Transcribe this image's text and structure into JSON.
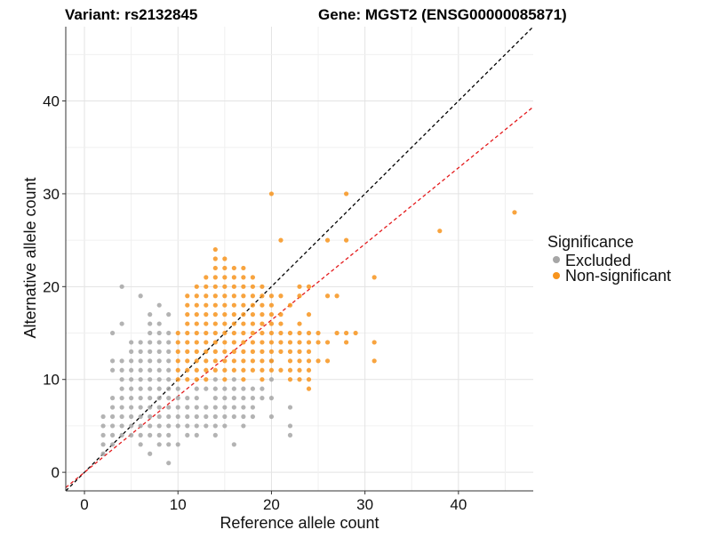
{
  "chart_data": {
    "type": "scatter",
    "title_variant": "Variant: rs2132845",
    "title_gene": "Gene: MGST2 (ENSG00000085871)",
    "xlabel": "Reference allele count",
    "ylabel": "Alternative allele count",
    "xlim": [
      -2,
      48
    ],
    "ylim": [
      -2,
      48
    ],
    "x_ticks": [
      0,
      10,
      20,
      30,
      40
    ],
    "y_ticks": [
      0,
      10,
      20,
      30,
      40
    ],
    "grid": true,
    "legend": {
      "title": "Significance",
      "position": "right",
      "entries": [
        {
          "name": "Excluded",
          "color": "#a6a6a6"
        },
        {
          "name": "Non-significant",
          "color": "#f7941d"
        }
      ]
    },
    "reference_lines": [
      {
        "color": "#000000",
        "dash": true,
        "slope": 1.0,
        "intercept": 0
      },
      {
        "color": "#e41a1c",
        "dash": true,
        "slope": 0.82,
        "intercept": 0
      }
    ],
    "series": [
      {
        "name": "Excluded",
        "color": "#a6a6a6",
        "points": [
          [
            2,
            2
          ],
          [
            2,
            3
          ],
          [
            2,
            4
          ],
          [
            2,
            5
          ],
          [
            2,
            6
          ],
          [
            3,
            3
          ],
          [
            3,
            4
          ],
          [
            3,
            5
          ],
          [
            3,
            6
          ],
          [
            3,
            7
          ],
          [
            3,
            8
          ],
          [
            3,
            11
          ],
          [
            3,
            12
          ],
          [
            3,
            15
          ],
          [
            4,
            4
          ],
          [
            4,
            5
          ],
          [
            4,
            6
          ],
          [
            4,
            7
          ],
          [
            4,
            8
          ],
          [
            4,
            9
          ],
          [
            4,
            10
          ],
          [
            4,
            11
          ],
          [
            4,
            12
          ],
          [
            4,
            16
          ],
          [
            4,
            20
          ],
          [
            5,
            4
          ],
          [
            5,
            5
          ],
          [
            5,
            6
          ],
          [
            5,
            7
          ],
          [
            5,
            8
          ],
          [
            5,
            9
          ],
          [
            5,
            10
          ],
          [
            5,
            11
          ],
          [
            5,
            12
          ],
          [
            5,
            13
          ],
          [
            5,
            14
          ],
          [
            6,
            3
          ],
          [
            6,
            4
          ],
          [
            6,
            5
          ],
          [
            6,
            6
          ],
          [
            6,
            7
          ],
          [
            6,
            8
          ],
          [
            6,
            9
          ],
          [
            6,
            10
          ],
          [
            6,
            11
          ],
          [
            6,
            12
          ],
          [
            6,
            13
          ],
          [
            6,
            14
          ],
          [
            6,
            19
          ],
          [
            7,
            2
          ],
          [
            7,
            4
          ],
          [
            7,
            5
          ],
          [
            7,
            6
          ],
          [
            7,
            7
          ],
          [
            7,
            8
          ],
          [
            7,
            9
          ],
          [
            7,
            10
          ],
          [
            7,
            11
          ],
          [
            7,
            12
          ],
          [
            7,
            13
          ],
          [
            7,
            14
          ],
          [
            7,
            15
          ],
          [
            7,
            16
          ],
          [
            7,
            17
          ],
          [
            8,
            3
          ],
          [
            8,
            4
          ],
          [
            8,
            5
          ],
          [
            8,
            6
          ],
          [
            8,
            7
          ],
          [
            8,
            8
          ],
          [
            8,
            9
          ],
          [
            8,
            10
          ],
          [
            8,
            11
          ],
          [
            8,
            12
          ],
          [
            8,
            13
          ],
          [
            8,
            14
          ],
          [
            8,
            15
          ],
          [
            8,
            16
          ],
          [
            8,
            18
          ],
          [
            9,
            1
          ],
          [
            9,
            3
          ],
          [
            9,
            4
          ],
          [
            9,
            5
          ],
          [
            9,
            6
          ],
          [
            9,
            7
          ],
          [
            9,
            8
          ],
          [
            9,
            9
          ],
          [
            9,
            10
          ],
          [
            9,
            11
          ],
          [
            9,
            12
          ],
          [
            9,
            13
          ],
          [
            9,
            14
          ],
          [
            9,
            15
          ],
          [
            9,
            17
          ],
          [
            10,
            3
          ],
          [
            10,
            5
          ],
          [
            10,
            6
          ],
          [
            10,
            7
          ],
          [
            10,
            8
          ],
          [
            10,
            9
          ],
          [
            11,
            4
          ],
          [
            11,
            5
          ],
          [
            11,
            6
          ],
          [
            11,
            7
          ],
          [
            11,
            8
          ],
          [
            12,
            4
          ],
          [
            12,
            5
          ],
          [
            12,
            6
          ],
          [
            12,
            7
          ],
          [
            12,
            8
          ],
          [
            12,
            9
          ],
          [
            13,
            5
          ],
          [
            13,
            6
          ],
          [
            13,
            7
          ],
          [
            13,
            9
          ],
          [
            14,
            4
          ],
          [
            14,
            5
          ],
          [
            14,
            6
          ],
          [
            14,
            7
          ],
          [
            14,
            8
          ],
          [
            14,
            9
          ],
          [
            14,
            10
          ],
          [
            15,
            5
          ],
          [
            15,
            6
          ],
          [
            15,
            7
          ],
          [
            15,
            8
          ],
          [
            15,
            9
          ],
          [
            16,
            3
          ],
          [
            16,
            6
          ],
          [
            16,
            7
          ],
          [
            16,
            8
          ],
          [
            16,
            9
          ],
          [
            16,
            10
          ],
          [
            17,
            5
          ],
          [
            17,
            6
          ],
          [
            17,
            7
          ],
          [
            17,
            8
          ],
          [
            17,
            9
          ],
          [
            18,
            6
          ],
          [
            18,
            7
          ],
          [
            18,
            8
          ],
          [
            18,
            9
          ],
          [
            19,
            8
          ],
          [
            19,
            9
          ],
          [
            20,
            6
          ],
          [
            20,
            8
          ],
          [
            20,
            10
          ],
          [
            20,
            12
          ],
          [
            22,
            4
          ],
          [
            22,
            5
          ],
          [
            22,
            7
          ]
        ]
      },
      {
        "name": "Non-significant",
        "color": "#f7941d",
        "points": [
          [
            10,
            10
          ],
          [
            10,
            11
          ],
          [
            10,
            12
          ],
          [
            10,
            13
          ],
          [
            10,
            14
          ],
          [
            10,
            15
          ],
          [
            11,
            10
          ],
          [
            11,
            11
          ],
          [
            11,
            12
          ],
          [
            11,
            13
          ],
          [
            11,
            14
          ],
          [
            11,
            15
          ],
          [
            11,
            16
          ],
          [
            11,
            17
          ],
          [
            11,
            18
          ],
          [
            11,
            19
          ],
          [
            12,
            10
          ],
          [
            12,
            11
          ],
          [
            12,
            12
          ],
          [
            12,
            13
          ],
          [
            12,
            14
          ],
          [
            12,
            15
          ],
          [
            12,
            16
          ],
          [
            12,
            17
          ],
          [
            12,
            18
          ],
          [
            12,
            19
          ],
          [
            12,
            20
          ],
          [
            13,
            10
          ],
          [
            13,
            11
          ],
          [
            13,
            12
          ],
          [
            13,
            13
          ],
          [
            13,
            14
          ],
          [
            13,
            15
          ],
          [
            13,
            16
          ],
          [
            13,
            17
          ],
          [
            13,
            18
          ],
          [
            13,
            19
          ],
          [
            13,
            20
          ],
          [
            13,
            21
          ],
          [
            14,
            11
          ],
          [
            14,
            12
          ],
          [
            14,
            13
          ],
          [
            14,
            14
          ],
          [
            14,
            15
          ],
          [
            14,
            16
          ],
          [
            14,
            17
          ],
          [
            14,
            18
          ],
          [
            14,
            19
          ],
          [
            14,
            20
          ],
          [
            14,
            21
          ],
          [
            14,
            22
          ],
          [
            14,
            23
          ],
          [
            14,
            24
          ],
          [
            15,
            10
          ],
          [
            15,
            11
          ],
          [
            15,
            12
          ],
          [
            15,
            13
          ],
          [
            15,
            14
          ],
          [
            15,
            15
          ],
          [
            15,
            16
          ],
          [
            15,
            17
          ],
          [
            15,
            18
          ],
          [
            15,
            19
          ],
          [
            15,
            20
          ],
          [
            15,
            21
          ],
          [
            15,
            22
          ],
          [
            15,
            23
          ],
          [
            16,
            11
          ],
          [
            16,
            12
          ],
          [
            16,
            13
          ],
          [
            16,
            14
          ],
          [
            16,
            15
          ],
          [
            16,
            16
          ],
          [
            16,
            17
          ],
          [
            16,
            18
          ],
          [
            16,
            19
          ],
          [
            16,
            20
          ],
          [
            16,
            21
          ],
          [
            16,
            22
          ],
          [
            17,
            10
          ],
          [
            17,
            11
          ],
          [
            17,
            12
          ],
          [
            17,
            13
          ],
          [
            17,
            14
          ],
          [
            17,
            15
          ],
          [
            17,
            16
          ],
          [
            17,
            17
          ],
          [
            17,
            18
          ],
          [
            17,
            19
          ],
          [
            17,
            20
          ],
          [
            17,
            21
          ],
          [
            17,
            22
          ],
          [
            18,
            11
          ],
          [
            18,
            12
          ],
          [
            18,
            13
          ],
          [
            18,
            14
          ],
          [
            18,
            15
          ],
          [
            18,
            16
          ],
          [
            18,
            17
          ],
          [
            18,
            18
          ],
          [
            18,
            19
          ],
          [
            18,
            20
          ],
          [
            18,
            21
          ],
          [
            19,
            10
          ],
          [
            19,
            11
          ],
          [
            19,
            12
          ],
          [
            19,
            13
          ],
          [
            19,
            14
          ],
          [
            19,
            15
          ],
          [
            19,
            16
          ],
          [
            19,
            17
          ],
          [
            19,
            18
          ],
          [
            19,
            19
          ],
          [
            19,
            20
          ],
          [
            20,
            11
          ],
          [
            20,
            12
          ],
          [
            20,
            13
          ],
          [
            20,
            14
          ],
          [
            20,
            15
          ],
          [
            20,
            16
          ],
          [
            20,
            17
          ],
          [
            20,
            18
          ],
          [
            20,
            19
          ],
          [
            20,
            30
          ],
          [
            21,
            11
          ],
          [
            21,
            13
          ],
          [
            21,
            14
          ],
          [
            21,
            15
          ],
          [
            21,
            16
          ],
          [
            21,
            17
          ],
          [
            21,
            19
          ],
          [
            21,
            25
          ],
          [
            22,
            10
          ],
          [
            22,
            11
          ],
          [
            22,
            12
          ],
          [
            22,
            13
          ],
          [
            22,
            14
          ],
          [
            22,
            15
          ],
          [
            22,
            18
          ],
          [
            23,
            10
          ],
          [
            23,
            11
          ],
          [
            23,
            12
          ],
          [
            23,
            13
          ],
          [
            23,
            14
          ],
          [
            23,
            15
          ],
          [
            23,
            16
          ],
          [
            23,
            19
          ],
          [
            23,
            20
          ],
          [
            24,
            9
          ],
          [
            24,
            10
          ],
          [
            24,
            11
          ],
          [
            24,
            12
          ],
          [
            24,
            13
          ],
          [
            24,
            14
          ],
          [
            24,
            15
          ],
          [
            24,
            17
          ],
          [
            24,
            20
          ],
          [
            25,
            12
          ],
          [
            25,
            14
          ],
          [
            25,
            15
          ],
          [
            26,
            12
          ],
          [
            26,
            14
          ],
          [
            26,
            19
          ],
          [
            26,
            25
          ],
          [
            27,
            15
          ],
          [
            27,
            19
          ],
          [
            28,
            14
          ],
          [
            28,
            15
          ],
          [
            28,
            25
          ],
          [
            28,
            30
          ],
          [
            29,
            15
          ],
          [
            31,
            12
          ],
          [
            31,
            14
          ],
          [
            31,
            21
          ],
          [
            38,
            26
          ],
          [
            46,
            28
          ]
        ]
      }
    ]
  }
}
